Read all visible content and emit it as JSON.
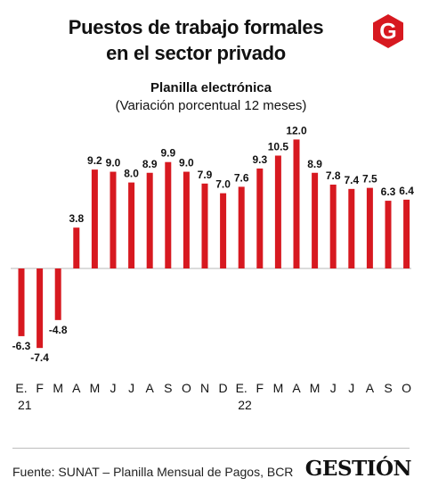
{
  "header": {
    "title_line1": "Puestos de trabajo formales",
    "title_line2": "en el sector privado",
    "logo_letter": "G",
    "logo_color": "#d71920"
  },
  "chart_data": {
    "type": "bar",
    "title": "Planilla electrónica",
    "subtitle": "(Variación porcentual 12 meses)",
    "categories": [
      "E.",
      "F",
      "M",
      "A",
      "M",
      "J",
      "J",
      "A",
      "S",
      "O",
      "N",
      "D",
      "E.",
      "F",
      "M",
      "A",
      "M",
      "J",
      "J",
      "A",
      "S",
      "O"
    ],
    "year_labels": [
      {
        "index": 0,
        "label": "21"
      },
      {
        "index": 12,
        "label": "22"
      }
    ],
    "values": [
      -6.3,
      -7.4,
      -4.8,
      3.8,
      9.2,
      9.0,
      8.0,
      8.9,
      9.9,
      9.0,
      7.9,
      7.0,
      7.6,
      9.3,
      10.5,
      12.0,
      8.9,
      7.8,
      7.4,
      7.5,
      6.3,
      6.4
    ],
    "value_labels": [
      "-6.3",
      "-7.4",
      "-4.8",
      "3.8",
      "9.2",
      "9.0",
      "8.0",
      "8.9",
      "9.9",
      "9.0",
      "7.9",
      "7.0",
      "7.6",
      "9.3",
      "10.5",
      "12.0",
      "8.9",
      "7.8",
      "7.4",
      "7.5",
      "6.3",
      "6.4"
    ],
    "bar_color": "#d71920",
    "baseline": 0
  },
  "footer": {
    "source": "Fuente: SUNAT – Planilla Mensual de Pagos, BCR",
    "brand": "GESTIÓN"
  }
}
